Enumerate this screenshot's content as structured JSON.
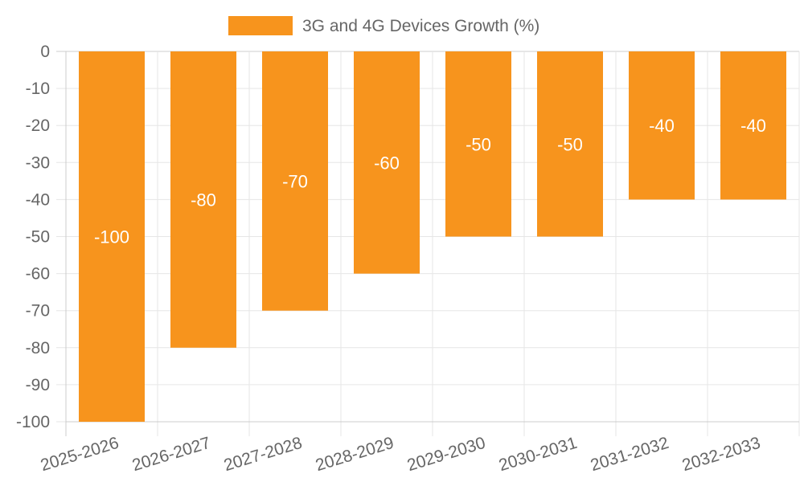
{
  "chart_data": {
    "type": "bar",
    "title": "",
    "xlabel": "",
    "ylabel": "",
    "legend": {
      "position": "top-center",
      "entries": [
        "3G and 4G Devices Growth (%)"
      ]
    },
    "categories": [
      "2025-2026",
      "2026-2027",
      "2027-2028",
      "2028-2029",
      "2029-2030",
      "2030-2031",
      "2031-2032",
      "2032-2033"
    ],
    "series": [
      {
        "name": "3G and 4G Devices Growth (%)",
        "values": [
          -100,
          -80,
          -70,
          -60,
          -50,
          -50,
          -40,
          -40
        ],
        "color": "#F7941D"
      }
    ],
    "ylim": [
      -100,
      0
    ],
    "yticks": [
      "0",
      "-10",
      "-20",
      "-30",
      "-40",
      "-50",
      "-60",
      "-70",
      "-80",
      "-90",
      "-100"
    ],
    "grid": true,
    "data_labels": [
      "-100",
      "-80",
      "-70",
      "-60",
      "-50",
      "-50",
      "-40",
      "-40"
    ]
  },
  "colors": {
    "bar": "#F7941D",
    "grid": "#e6e6e6",
    "axis": "#cccccc",
    "tick_text": "#666666",
    "label_text": "#ffffff"
  }
}
